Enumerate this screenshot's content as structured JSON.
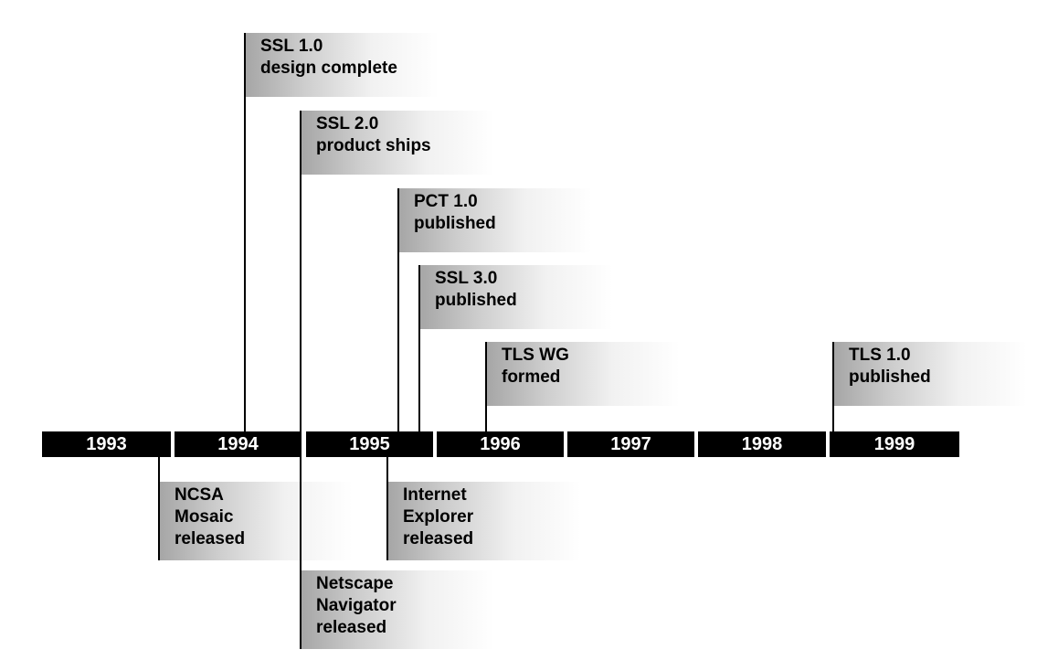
{
  "years": [
    "1993",
    "1994",
    "1995",
    "1996",
    "1997",
    "1998",
    "1999"
  ],
  "events_above": [
    {
      "label": "SSL 1.0\ndesign complete"
    },
    {
      "label": "SSL 2.0\nproduct ships"
    },
    {
      "label": "PCT 1.0\npublished"
    },
    {
      "label": "SSL 3.0\npublished"
    },
    {
      "label": "TLS WG\nformed"
    },
    {
      "label": "TLS 1.0\npublished"
    }
  ],
  "events_below": [
    {
      "label": "NCSA\nMosaic\nreleased"
    },
    {
      "label": "Internet\nExplorer\nreleased"
    },
    {
      "label": "Netscape\nNavigator\nreleased"
    }
  ],
  "colors": {
    "bar": "#000000",
    "bar_text": "#ffffff",
    "label_shade": "#a6a6a6",
    "line": "#000000"
  }
}
